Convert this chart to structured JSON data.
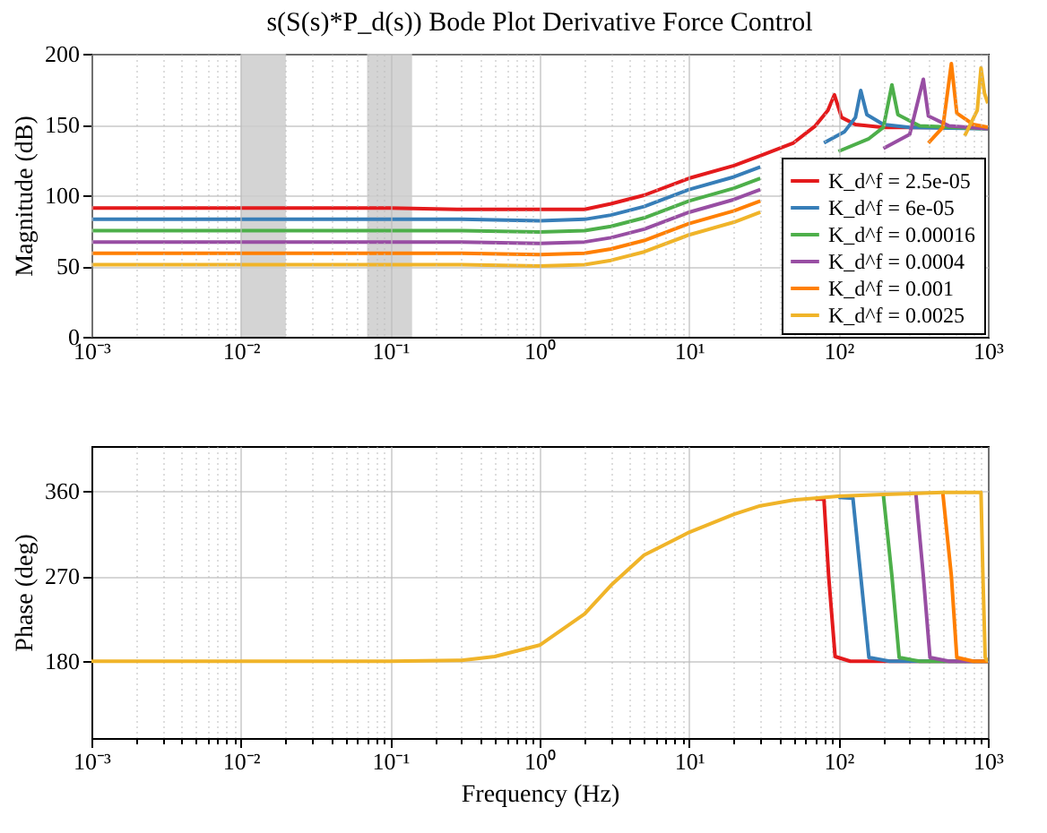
{
  "chart_data": [
    {
      "type": "line",
      "title": "s(S(s)*P_d(s)) Bode Plot Derivative Force Control",
      "ylabel": "Magnitude (dB)",
      "log": "x",
      "grid": true,
      "legend": "bottom right",
      "xlim": [
        0.001,
        1000
      ],
      "ylim": [
        0,
        200
      ],
      "yticks": [
        0,
        50,
        100,
        150,
        200
      ],
      "xticks": [
        {
          "value": 0.001,
          "label": "10⁻³"
        },
        {
          "value": 0.002,
          "label": null
        },
        {
          "value": 0.003,
          "label": null
        },
        {
          "value": 0.004,
          "label": null
        },
        {
          "value": 0.005,
          "label": null
        },
        {
          "value": 0.006,
          "label": null
        },
        {
          "value": 0.007,
          "label": null
        },
        {
          "value": 0.008,
          "label": null
        },
        {
          "value": 0.009,
          "label": null
        },
        {
          "value": 0.01,
          "label": "10⁻²"
        },
        {
          "value": 0.02,
          "label": null
        },
        {
          "value": 0.03,
          "label": null
        },
        {
          "value": 0.04,
          "label": null
        },
        {
          "value": 0.05,
          "label": null
        },
        {
          "value": 0.06,
          "label": null
        },
        {
          "value": 0.07,
          "label": null
        },
        {
          "value": 0.08,
          "label": null
        },
        {
          "value": 0.09,
          "label": null
        },
        {
          "value": 0.1,
          "label": "10⁻¹"
        },
        {
          "value": 0.2,
          "label": null
        },
        {
          "value": 0.3,
          "label": null
        },
        {
          "value": 0.4,
          "label": null
        },
        {
          "value": 0.5,
          "label": null
        },
        {
          "value": 0.6,
          "label": null
        },
        {
          "value": 0.7,
          "label": null
        },
        {
          "value": 0.8,
          "label": null
        },
        {
          "value": 0.9,
          "label": null
        },
        {
          "value": 1,
          "label": "10⁰"
        },
        {
          "value": 2,
          "label": null
        },
        {
          "value": 3,
          "label": null
        },
        {
          "value": 4,
          "label": null
        },
        {
          "value": 5,
          "label": null
        },
        {
          "value": 6,
          "label": null
        },
        {
          "value": 7,
          "label": null
        },
        {
          "value": 8,
          "label": null
        },
        {
          "value": 9,
          "label": null
        },
        {
          "value": 10,
          "label": "10¹"
        },
        {
          "value": 20,
          "label": null
        },
        {
          "value": 30,
          "label": null
        },
        {
          "value": 40,
          "label": null
        },
        {
          "value": 50,
          "label": null
        },
        {
          "value": 60,
          "label": null
        },
        {
          "value": 70,
          "label": null
        },
        {
          "value": 80,
          "label": null
        },
        {
          "value": 90,
          "label": null
        },
        {
          "value": 100,
          "label": "10²"
        },
        {
          "value": 200,
          "label": null
        },
        {
          "value": 300,
          "label": null
        },
        {
          "value": 400,
          "label": null
        },
        {
          "value": 500,
          "label": null
        },
        {
          "value": 600,
          "label": null
        },
        {
          "value": 700,
          "label": null
        },
        {
          "value": 800,
          "label": null
        },
        {
          "value": 900,
          "label": null
        },
        {
          "value": 1000,
          "label": "10³"
        }
      ],
      "bands": [
        {
          "axis": "x",
          "from": 0.01,
          "to": 0.02,
          "color": "#cccccc"
        },
        {
          "axis": "x",
          "from": 0.07,
          "to": 0.14,
          "color": "#cccccc"
        }
      ],
      "series": [
        {
          "name": "K_d^f = 2.5e-05",
          "color": "#e41a1c",
          "x": [
            0.001,
            0.01,
            0.1,
            0.3,
            1,
            2,
            3,
            5,
            10,
            20,
            30,
            50,
            70,
            85,
            94,
            105,
            130,
            200,
            400,
            1000
          ],
          "values": [
            91,
            91,
            91,
            90,
            90,
            90,
            94,
            100,
            112,
            121,
            128,
            137,
            149,
            160,
            171,
            155,
            150,
            148,
            148,
            148
          ]
        },
        {
          "name": "K_d^f = 6e-05",
          "color": "#377eb8",
          "x": [
            0.001,
            0.01,
            0.1,
            0.3,
            1,
            2,
            3,
            5,
            10,
            20,
            30,
            50,
            80,
            110,
            130,
            141,
            155,
            200,
            300,
            1000
          ],
          "values": [
            83,
            83,
            83,
            83,
            82,
            83,
            86,
            92,
            104,
            113,
            120,
            null,
            137,
            145,
            155,
            174,
            157,
            150,
            148,
            147
          ]
        },
        {
          "name": "K_d^f = 0.00016",
          "color": "#4daf4a",
          "x": [
            0.001,
            0.01,
            0.1,
            0.3,
            1,
            2,
            3,
            5,
            10,
            20,
            30,
            50,
            100,
            160,
            200,
            228,
            250,
            350,
            1000
          ],
          "values": [
            75,
            75,
            75,
            75,
            74,
            75,
            78,
            84,
            96,
            105,
            112,
            null,
            131,
            140,
            148,
            178,
            157,
            149,
            147
          ]
        },
        {
          "name": "K_d^f = 0.0004",
          "color": "#984ea3",
          "x": [
            0.001,
            0.01,
            0.1,
            0.3,
            1,
            2,
            3,
            5,
            10,
            20,
            30,
            50,
            100,
            200,
            300,
            370,
            400,
            550,
            1000
          ],
          "values": [
            67,
            67,
            67,
            67,
            66,
            67,
            70,
            76,
            88,
            97,
            104,
            null,
            null,
            133,
            143,
            182,
            156,
            149,
            147
          ]
        },
        {
          "name": "K_d^f = 0.001",
          "color": "#ff7f00",
          "x": [
            0.001,
            0.01,
            0.1,
            0.3,
            1,
            2,
            3,
            5,
            10,
            20,
            30,
            50,
            100,
            200,
            400,
            500,
            570,
            620,
            800,
            1000
          ],
          "values": [
            59,
            59,
            59,
            59,
            58,
            59,
            62,
            68,
            80,
            89,
            96,
            null,
            null,
            null,
            137,
            148,
            193,
            158,
            150,
            148
          ]
        },
        {
          "name": "K_d^f = 0.0025",
          "color": "#f0b429",
          "x": [
            0.001,
            0.01,
            0.1,
            0.3,
            1,
            2,
            3,
            5,
            10,
            20,
            30,
            50,
            100,
            200,
            400,
            700,
            850,
            900,
            950,
            1000
          ],
          "values": [
            51,
            51,
            51,
            51,
            50,
            51,
            54,
            60,
            72,
            81,
            88,
            null,
            null,
            null,
            null,
            142,
            160,
            190,
            172,
            165
          ]
        }
      ]
    },
    {
      "type": "line",
      "xlabel": "Frequency (Hz)",
      "ylabel": "Phase (deg)",
      "log": "x",
      "grid": true,
      "xlim": [
        0.001,
        1000
      ],
      "ylim": [
        99,
        407
      ],
      "yticks": [
        180,
        270,
        360
      ],
      "xticks": [
        {
          "value": 0.001,
          "label": "10⁻³"
        },
        {
          "value": 0.002,
          "label": null
        },
        {
          "value": 0.003,
          "label": null
        },
        {
          "value": 0.004,
          "label": null
        },
        {
          "value": 0.005,
          "label": null
        },
        {
          "value": 0.006,
          "label": null
        },
        {
          "value": 0.007,
          "label": null
        },
        {
          "value": 0.008,
          "label": null
        },
        {
          "value": 0.009,
          "label": null
        },
        {
          "value": 0.01,
          "label": "10⁻²"
        },
        {
          "value": 0.02,
          "label": null
        },
        {
          "value": 0.03,
          "label": null
        },
        {
          "value": 0.04,
          "label": null
        },
        {
          "value": 0.05,
          "label": null
        },
        {
          "value": 0.06,
          "label": null
        },
        {
          "value": 0.07,
          "label": null
        },
        {
          "value": 0.08,
          "label": null
        },
        {
          "value": 0.09,
          "label": null
        },
        {
          "value": 0.1,
          "label": "10⁻¹"
        },
        {
          "value": 0.2,
          "label": null
        },
        {
          "value": 0.3,
          "label": null
        },
        {
          "value": 0.4,
          "label": null
        },
        {
          "value": 0.5,
          "label": null
        },
        {
          "value": 0.6,
          "label": null
        },
        {
          "value": 0.7,
          "label": null
        },
        {
          "value": 0.8,
          "label": null
        },
        {
          "value": 0.9,
          "label": null
        },
        {
          "value": 1,
          "label": "10⁰"
        },
        {
          "value": 2,
          "label": null
        },
        {
          "value": 3,
          "label": null
        },
        {
          "value": 4,
          "label": null
        },
        {
          "value": 5,
          "label": null
        },
        {
          "value": 6,
          "label": null
        },
        {
          "value": 7,
          "label": null
        },
        {
          "value": 8,
          "label": null
        },
        {
          "value": 9,
          "label": null
        },
        {
          "value": 10,
          "label": "10¹"
        },
        {
          "value": 20,
          "label": null
        },
        {
          "value": 30,
          "label": null
        },
        {
          "value": 40,
          "label": null
        },
        {
          "value": 50,
          "label": null
        },
        {
          "value": 60,
          "label": null
        },
        {
          "value": 70,
          "label": null
        },
        {
          "value": 80,
          "label": null
        },
        {
          "value": 90,
          "label": null
        },
        {
          "value": 100,
          "label": "10²"
        },
        {
          "value": 200,
          "label": null
        },
        {
          "value": 300,
          "label": null
        },
        {
          "value": 400,
          "label": null
        },
        {
          "value": 500,
          "label": null
        },
        {
          "value": 600,
          "label": null
        },
        {
          "value": 700,
          "label": null
        },
        {
          "value": 800,
          "label": null
        },
        {
          "value": 900,
          "label": null
        },
        {
          "value": 1000,
          "label": "10³"
        }
      ],
      "series": [
        {
          "color": "#e41a1c",
          "x": [
            70,
            80,
            86,
            95,
            120,
            1000
          ],
          "values": [
            351,
            351,
            270,
            185,
            180,
            180
          ]
        },
        {
          "color": "#377eb8",
          "x": [
            100,
            125,
            141,
            160,
            220,
            1000
          ],
          "values": [
            353,
            352,
            270,
            184,
            180,
            180
          ]
        },
        {
          "color": "#4daf4a",
          "x": [
            200,
            228,
            255,
            350,
            1000
          ],
          "values": [
            355,
            270,
            184,
            180,
            180
          ]
        },
        {
          "color": "#984ea3",
          "x": [
            330,
            370,
            410,
            550,
            1000
          ],
          "values": [
            356,
            270,
            184,
            180,
            180
          ]
        },
        {
          "color": "#ff7f00",
          "x": [
            500,
            570,
            620,
            800,
            1000
          ],
          "values": [
            357,
            270,
            184,
            180,
            180
          ]
        },
        {
          "color": "#f0b429",
          "x": [
            0.001,
            0.1,
            0.3,
            0.5,
            1,
            2,
            3,
            5,
            10,
            20,
            30,
            50,
            100,
            200,
            500,
            900,
            927,
            960,
            1000
          ],
          "values": [
            180,
            180,
            181,
            185,
            197,
            230,
            260,
            292,
            316,
            335,
            344,
            350,
            354,
            356,
            358,
            358,
            270,
            184,
            180
          ]
        }
      ]
    }
  ]
}
